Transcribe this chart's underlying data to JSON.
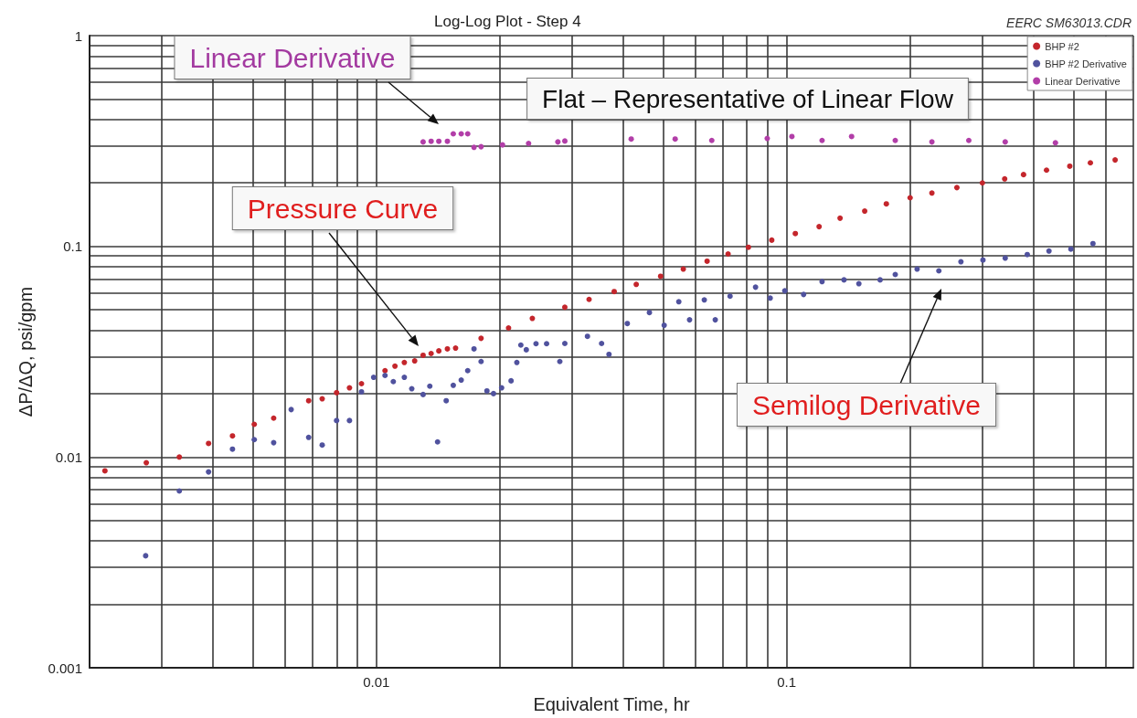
{
  "chart_data": {
    "type": "scatter",
    "title": "Log-Log Plot - Step 4",
    "xlabel": "Equivalent Time, hr",
    "ylabel": "ΔP/ΔQ, psi/gpm",
    "log": "xy",
    "grid": true,
    "legend": "top right",
    "marker": "circle",
    "xlim": [
      0.002,
      0.7
    ],
    "ylim": [
      0.001,
      1
    ],
    "xticks": [
      {
        "value": 0.002,
        "label": null
      },
      {
        "value": 0.003,
        "label": null
      },
      {
        "value": 0.004,
        "label": null
      },
      {
        "value": 0.005,
        "label": null
      },
      {
        "value": 0.006,
        "label": null
      },
      {
        "value": 0.007,
        "label": null
      },
      {
        "value": 0.008,
        "label": null
      },
      {
        "value": 0.009,
        "label": null
      },
      0.01,
      {
        "value": 0.02,
        "label": null
      },
      {
        "value": 0.03,
        "label": null
      },
      {
        "value": 0.04,
        "label": null
      },
      {
        "value": 0.05,
        "label": null
      },
      {
        "value": 0.06,
        "label": null
      },
      {
        "value": 0.07,
        "label": null
      },
      {
        "value": 0.08,
        "label": null
      },
      {
        "value": 0.09,
        "label": null
      },
      0.1,
      {
        "value": 0.2,
        "label": null
      },
      {
        "value": 0.3,
        "label": null
      },
      {
        "value": 0.4,
        "label": null
      },
      {
        "value": 0.5,
        "label": null
      },
      {
        "value": 0.6,
        "label": null
      },
      {
        "value": 0.7,
        "label": null
      }
    ],
    "yticks": [
      0.001,
      {
        "value": 0.002,
        "label": null
      },
      {
        "value": 0.003,
        "label": null
      },
      {
        "value": 0.004,
        "label": null
      },
      {
        "value": 0.005,
        "label": null
      },
      {
        "value": 0.006,
        "label": null
      },
      {
        "value": 0.007,
        "label": null
      },
      {
        "value": 0.008,
        "label": null
      },
      {
        "value": 0.009,
        "label": null
      },
      0.01,
      {
        "value": 0.02,
        "label": null
      },
      {
        "value": 0.03,
        "label": null
      },
      {
        "value": 0.04,
        "label": null
      },
      {
        "value": 0.05,
        "label": null
      },
      {
        "value": 0.06,
        "label": null
      },
      {
        "value": 0.07,
        "label": null
      },
      {
        "value": 0.08,
        "label": null
      },
      {
        "value": 0.09,
        "label": null
      },
      0.1,
      {
        "value": 0.2,
        "label": null
      },
      {
        "value": 0.3,
        "label": null
      },
      {
        "value": 0.4,
        "label": null
      },
      {
        "value": 0.5,
        "label": null
      },
      {
        "value": 0.6,
        "label": null
      },
      {
        "value": 0.7,
        "label": null
      },
      {
        "value": 0.8,
        "label": null
      },
      {
        "value": 0.9,
        "label": null
      },
      1
    ],
    "series": [
      {
        "name": "BHP #2",
        "color": "#c4262c",
        "x": [
          0.00218,
          0.00275,
          0.00331,
          0.0039,
          0.00446,
          0.00504,
          0.00562,
          0.00684,
          0.00738,
          0.008,
          0.0086,
          0.0092,
          0.0105,
          0.0111,
          0.0117,
          0.0124,
          0.013,
          0.0136,
          0.0142,
          0.0149,
          0.0156,
          0.018,
          0.021,
          0.024,
          0.0288,
          0.033,
          0.038,
          0.043,
          0.0493,
          0.056,
          0.064,
          0.072,
          0.0807,
          0.092,
          0.105,
          0.12,
          0.135,
          0.155,
          0.175,
          0.2,
          0.226,
          0.26,
          0.3,
          0.34,
          0.378,
          0.43,
          0.49,
          0.55,
          0.632
        ],
        "values": [
          0.0086,
          0.0094,
          0.01,
          0.0116,
          0.0126,
          0.0143,
          0.0153,
          0.0185,
          0.0189,
          0.0202,
          0.0213,
          0.0223,
          0.0257,
          0.027,
          0.0281,
          0.0286,
          0.0304,
          0.031,
          0.0319,
          0.0326,
          0.0329,
          0.0366,
          0.041,
          0.0455,
          0.0514,
          0.056,
          0.061,
          0.066,
          0.0721,
          0.078,
          0.085,
          0.092,
          0.099,
          0.107,
          0.115,
          0.124,
          0.136,
          0.147,
          0.159,
          0.17,
          0.179,
          0.19,
          0.2,
          0.209,
          0.219,
          0.23,
          0.24,
          0.249,
          0.257
        ]
      },
      {
        "name": "BHP #2 Derivative",
        "color": "#50529e",
        "x": [
          0.00274,
          0.00331,
          0.0039,
          0.00446,
          0.00504,
          0.00562,
          0.0062,
          0.00684,
          0.00738,
          0.008,
          0.0086,
          0.0092,
          0.00985,
          0.0105,
          0.011,
          0.0117,
          0.0122,
          0.013,
          0.0135,
          0.0141,
          0.0148,
          0.0154,
          0.0161,
          0.0167,
          0.0173,
          0.018,
          0.0186,
          0.0193,
          0.0202,
          0.0213,
          0.022,
          0.0225,
          0.0232,
          0.0245,
          0.026,
          0.028,
          0.0288,
          0.0327,
          0.0354,
          0.0369,
          0.0409,
          0.0463,
          0.0503,
          0.0546,
          0.058,
          0.063,
          0.067,
          0.0728,
          0.084,
          0.0912,
          0.099,
          0.11,
          0.122,
          0.138,
          0.15,
          0.169,
          0.184,
          0.208,
          0.235,
          0.266,
          0.301,
          0.341,
          0.386,
          0.436,
          0.493,
          0.558
        ],
        "values": [
          0.0034,
          0.0069,
          0.0085,
          0.0109,
          0.0121,
          0.0117,
          0.0168,
          0.0124,
          0.0114,
          0.0149,
          0.0149,
          0.0204,
          0.0239,
          0.0244,
          0.0228,
          0.0239,
          0.0211,
          0.0198,
          0.0217,
          0.0118,
          0.0185,
          0.0219,
          0.0232,
          0.0257,
          0.0326,
          0.0284,
          0.0206,
          0.02,
          0.0213,
          0.023,
          0.0281,
          0.034,
          0.0323,
          0.0345,
          0.0345,
          0.0284,
          0.0346,
          0.0374,
          0.0346,
          0.0307,
          0.043,
          0.0485,
          0.0422,
          0.0546,
          0.0448,
          0.0557,
          0.0448,
          0.058,
          0.064,
          0.0568,
          0.0615,
          0.0591,
          0.068,
          0.0693,
          0.0665,
          0.0693,
          0.0735,
          0.078,
          0.0765,
          0.0845,
          0.0861,
          0.0879,
          0.0914,
          0.095,
          0.097,
          0.103
        ]
      },
      {
        "name": "Linear Derivative",
        "color": "#b23ea8",
        "x": [
          0.013,
          0.0136,
          0.0142,
          0.0149,
          0.0154,
          0.0161,
          0.0167,
          0.0173,
          0.018,
          0.0203,
          0.0235,
          0.0277,
          0.0288,
          0.0418,
          0.0535,
          0.0657,
          0.0897,
          0.103,
          0.122,
          0.144,
          0.184,
          0.226,
          0.278,
          0.341,
          0.452
        ],
        "values": [
          0.313,
          0.315,
          0.315,
          0.315,
          0.342,
          0.342,
          0.342,
          0.295,
          0.297,
          0.303,
          0.308,
          0.313,
          0.316,
          0.323,
          0.323,
          0.318,
          0.325,
          0.332,
          0.318,
          0.332,
          0.318,
          0.313,
          0.318,
          0.313,
          0.31
        ]
      }
    ],
    "annotations": [
      "Linear Derivative",
      "Flat – Representative of Linear Flow",
      "Pressure Curve",
      "Semilog Derivative",
      "EERC SM63013.CDR"
    ]
  }
}
